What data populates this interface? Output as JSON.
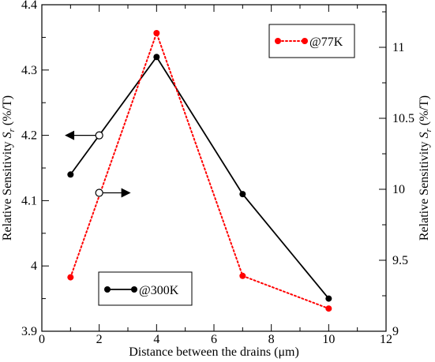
{
  "chart_data": {
    "type": "line",
    "xlabel": "Distance between the drains (μm)",
    "ylabel_left": "Relative Sensitivity S_r (%/T)",
    "ylabel_right": "Relative Sensitivity S_r (%/T)",
    "xlim": [
      0,
      12
    ],
    "ylim_left": [
      3.9,
      4.4
    ],
    "ylim_right": [
      9,
      11.3
    ],
    "x_ticks": [
      0,
      2,
      4,
      6,
      8,
      10,
      12
    ],
    "y_left_ticks": [
      3.9,
      4,
      4.1,
      4.2,
      4.3,
      4.4
    ],
    "y_left_tick_labels": [
      "3.9",
      "4",
      "4.1",
      "4.2",
      "4.3",
      "4.4"
    ],
    "y_right_ticks": [
      9,
      9.5,
      10,
      10.5,
      11
    ],
    "y_right_tick_labels": [
      "9",
      "9.5",
      "10",
      "10.5",
      "11"
    ],
    "grid": false,
    "series": [
      {
        "name": "@300K",
        "axis": "left",
        "color": "#000000",
        "line_style": "solid",
        "x": [
          1,
          4,
          7,
          10
        ],
        "values": [
          4.14,
          4.32,
          4.11,
          3.95
        ]
      },
      {
        "name": "@77K",
        "axis": "right",
        "color": "#ff0000",
        "line_style": "dotted",
        "x": [
          1,
          4,
          7,
          10
        ],
        "values": [
          9.38,
          11.1,
          9.39,
          9.16
        ]
      }
    ],
    "annotations": [
      {
        "type": "arrow-left",
        "marker_x": 2,
        "marker_y_left": 4.2,
        "meaning": "@300K uses left axis"
      },
      {
        "type": "arrow-right",
        "marker_x": 2,
        "marker_y_left": 4.112,
        "meaning": "@77K uses right axis"
      }
    ],
    "legends": [
      {
        "label": "@77K",
        "placement": "top-right"
      },
      {
        "label": "@300K",
        "placement": "bottom-left"
      }
    ]
  }
}
